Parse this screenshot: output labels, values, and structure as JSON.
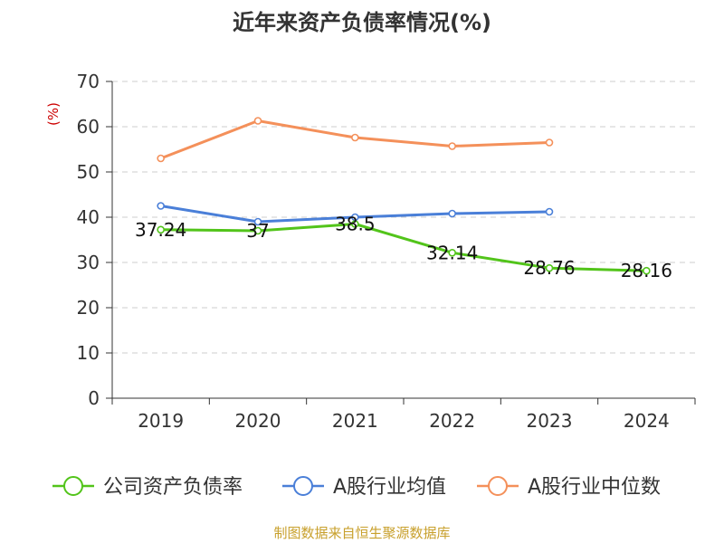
{
  "chart_data": {
    "type": "line",
    "title": "近年来资产负债率情况(%)",
    "ylabel": "(%)",
    "xlabel": "",
    "categories": [
      "2019",
      "2020",
      "2021",
      "2022",
      "2023",
      "2024"
    ],
    "ylim": [
      0,
      70
    ],
    "yticks": [
      0,
      10,
      20,
      30,
      40,
      50,
      60,
      70
    ],
    "grid": true,
    "legend_position": "bottom",
    "series": [
      {
        "name": "公司资产负债率",
        "color": "#52c41a",
        "values": [
          37.24,
          37,
          38.5,
          32.14,
          28.76,
          28.16
        ],
        "labels": [
          "37.24",
          "37",
          "38.5",
          "32.14",
          "28.76",
          "28.16"
        ]
      },
      {
        "name": "A股行业均值",
        "color": "#4a7fd8",
        "values": [
          42.5,
          39,
          40,
          40.8,
          41.2,
          null
        ]
      },
      {
        "name": "A股行业中位数",
        "color": "#f4905a",
        "values": [
          53,
          61.3,
          57.6,
          55.7,
          56.5,
          null
        ]
      }
    ],
    "source": "制图数据来自恒生聚源数据库"
  }
}
